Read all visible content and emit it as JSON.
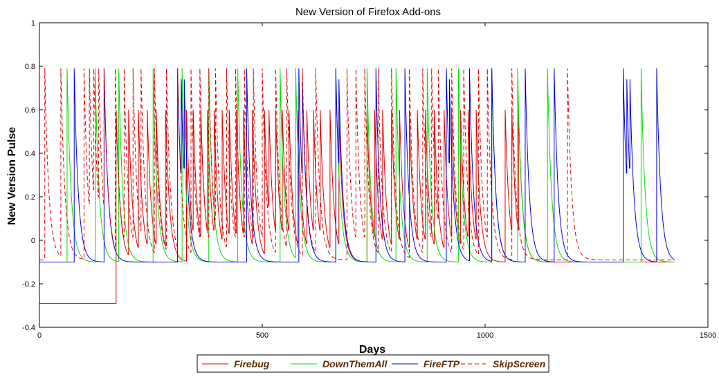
{
  "chart_data": {
    "type": "line",
    "title": "New Version of Firefox Add-ons",
    "xlabel": "Days",
    "ylabel": "New Version Pulse",
    "xlim": [
      0,
      1500
    ],
    "ylim": [
      -0.4,
      1
    ],
    "xticks": [
      0,
      500,
      1000,
      1500
    ],
    "yticks": [
      -0.4,
      -0.2,
      0,
      0.2,
      0.4,
      0.6,
      0.8,
      1
    ],
    "legend_position": "bottom-center",
    "grid": false,
    "series": [
      {
        "name": "Firebug",
        "color": "#e00000",
        "dash": "solid",
        "baseline_before": -0.29,
        "baseline_change_day": 172,
        "baseline": -0.1,
        "pulses": [
          {
            "day": 172,
            "peak": 0.6
          },
          {
            "day": 200,
            "peak": 0.6
          },
          {
            "day": 222,
            "peak": 0.6
          },
          {
            "day": 242,
            "peak": 0.6
          },
          {
            "day": 262,
            "peak": 0.6
          },
          {
            "day": 283,
            "peak": 0.6
          },
          {
            "day": 330,
            "peak": 0.6
          },
          {
            "day": 345,
            "peak": 0.6
          },
          {
            "day": 362,
            "peak": 0.6
          },
          {
            "day": 377,
            "peak": 0.6
          },
          {
            "day": 392,
            "peak": 0.6
          },
          {
            "day": 410,
            "peak": 0.6
          },
          {
            "day": 426,
            "peak": 0.6
          },
          {
            "day": 442,
            "peak": 0.6
          },
          {
            "day": 458,
            "peak": 0.6
          },
          {
            "day": 478,
            "peak": 0.6
          },
          {
            "day": 505,
            "peak": 0.6
          },
          {
            "day": 515,
            "peak": 0.6
          },
          {
            "day": 530,
            "peak": 0.6
          },
          {
            "day": 545,
            "peak": 0.6
          },
          {
            "day": 560,
            "peak": 0.6
          },
          {
            "day": 580,
            "peak": 0.6
          },
          {
            "day": 600,
            "peak": 0.6
          },
          {
            "day": 615,
            "peak": 0.6
          },
          {
            "day": 630,
            "peak": 0.6
          },
          {
            "day": 652,
            "peak": 0.6
          },
          {
            "day": 672,
            "peak": 0.6
          },
          {
            "day": 735,
            "peak": 0.6
          },
          {
            "day": 752,
            "peak": 0.6
          },
          {
            "day": 770,
            "peak": 0.6
          },
          {
            "day": 790,
            "peak": 0.6
          },
          {
            "day": 808,
            "peak": 0.6
          },
          {
            "day": 830,
            "peak": 0.6
          },
          {
            "day": 848,
            "peak": 0.6
          },
          {
            "day": 866,
            "peak": 0.6
          },
          {
            "day": 886,
            "peak": 0.6
          },
          {
            "day": 908,
            "peak": 0.6
          },
          {
            "day": 925,
            "peak": 0.6
          },
          {
            "day": 945,
            "peak": 0.6
          },
          {
            "day": 962,
            "peak": 0.6
          },
          {
            "day": 980,
            "peak": 0.6
          },
          {
            "day": 1045,
            "peak": 0.6
          },
          {
            "day": 1060,
            "peak": 0.6
          },
          {
            "day": 1075,
            "peak": 0.6
          }
        ]
      },
      {
        "name": "DownThemAll",
        "color": "#00dd00",
        "dash": "solid",
        "baseline": -0.1,
        "pulses": [
          {
            "day": 62,
            "peak": 0.79
          },
          {
            "day": 125,
            "peak": 0.79
          },
          {
            "day": 178,
            "peak": 0.79
          },
          {
            "day": 255,
            "peak": 0.79
          },
          {
            "day": 320,
            "peak": 0.79
          },
          {
            "day": 380,
            "peak": 0.79
          },
          {
            "day": 445,
            "peak": 0.79
          },
          {
            "day": 540,
            "peak": 0.79
          },
          {
            "day": 575,
            "peak": 0.79
          },
          {
            "day": 665,
            "peak": 0.79
          },
          {
            "day": 735,
            "peak": 0.79
          },
          {
            "day": 800,
            "peak": 0.79
          },
          {
            "day": 870,
            "peak": 0.79
          },
          {
            "day": 940,
            "peak": 0.79
          },
          {
            "day": 1015,
            "peak": 0.79
          },
          {
            "day": 1073,
            "peak": 0.79
          },
          {
            "day": 1140,
            "peak": 0.79
          },
          {
            "day": 1350,
            "peak": 0.79
          }
        ]
      },
      {
        "name": "FireFTP",
        "color": "#0000dd",
        "dash": "solid",
        "baseline": -0.1,
        "pulses": [
          {
            "day": 78,
            "peak": 0.79
          },
          {
            "day": 145,
            "peak": 0.79
          },
          {
            "day": 310,
            "peak": 0.79
          },
          {
            "day": 318,
            "peak": 0.74
          },
          {
            "day": 325,
            "peak": 0.74
          },
          {
            "day": 465,
            "peak": 0.79
          },
          {
            "day": 582,
            "peak": 0.79
          },
          {
            "day": 590,
            "peak": 0.74
          },
          {
            "day": 665,
            "peak": 0.79
          },
          {
            "day": 672,
            "peak": 0.74
          },
          {
            "day": 755,
            "peak": 0.79
          },
          {
            "day": 820,
            "peak": 0.79
          },
          {
            "day": 913,
            "peak": 0.79
          },
          {
            "day": 920,
            "peak": 0.74
          },
          {
            "day": 965,
            "peak": 0.79
          },
          {
            "day": 1015,
            "peak": 0.79
          },
          {
            "day": 1090,
            "peak": 0.79
          },
          {
            "day": 1155,
            "peak": 0.79
          },
          {
            "day": 1310,
            "peak": 0.79
          },
          {
            "day": 1318,
            "peak": 0.74
          },
          {
            "day": 1325,
            "peak": 0.74
          },
          {
            "day": 1385,
            "peak": 0.79
          }
        ]
      },
      {
        "name": "SkipScreen",
        "color": "#e00000",
        "dash": "dashed",
        "baseline": -0.09,
        "pulses": [
          {
            "day": 12,
            "peak": 0.79
          },
          {
            "day": 48,
            "peak": 0.79
          },
          {
            "day": 100,
            "peak": 0.79
          },
          {
            "day": 112,
            "peak": 0.79
          },
          {
            "day": 122,
            "peak": 0.79
          },
          {
            "day": 133,
            "peak": 0.79
          },
          {
            "day": 145,
            "peak": 0.79
          },
          {
            "day": 170,
            "peak": 0.79
          },
          {
            "day": 190,
            "peak": 0.79
          },
          {
            "day": 210,
            "peak": 0.79
          },
          {
            "day": 228,
            "peak": 0.79
          },
          {
            "day": 258,
            "peak": 0.79
          },
          {
            "day": 285,
            "peak": 0.79
          },
          {
            "day": 310,
            "peak": 0.79
          },
          {
            "day": 340,
            "peak": 0.79
          },
          {
            "day": 360,
            "peak": 0.79
          },
          {
            "day": 380,
            "peak": 0.79
          },
          {
            "day": 395,
            "peak": 0.79
          },
          {
            "day": 420,
            "peak": 0.79
          },
          {
            "day": 440,
            "peak": 0.79
          },
          {
            "day": 460,
            "peak": 0.79
          },
          {
            "day": 480,
            "peak": 0.79
          },
          {
            "day": 500,
            "peak": 0.79
          },
          {
            "day": 530,
            "peak": 0.79
          },
          {
            "day": 555,
            "peak": 0.79
          },
          {
            "day": 590,
            "peak": 0.79
          },
          {
            "day": 620,
            "peak": 0.79
          },
          {
            "day": 690,
            "peak": 0.79
          },
          {
            "day": 710,
            "peak": 0.79
          },
          {
            "day": 730,
            "peak": 0.79
          },
          {
            "day": 760,
            "peak": 0.79
          },
          {
            "day": 790,
            "peak": 0.79
          },
          {
            "day": 830,
            "peak": 0.79
          },
          {
            "day": 860,
            "peak": 0.79
          },
          {
            "day": 880,
            "peak": 0.79
          },
          {
            "day": 895,
            "peak": 0.79
          },
          {
            "day": 925,
            "peak": 0.79
          },
          {
            "day": 952,
            "peak": 0.79
          },
          {
            "day": 985,
            "peak": 0.79
          },
          {
            "day": 1005,
            "peak": 0.79
          },
          {
            "day": 1060,
            "peak": 0.79
          },
          {
            "day": 1185,
            "peak": 0.79
          }
        ]
      }
    ]
  }
}
